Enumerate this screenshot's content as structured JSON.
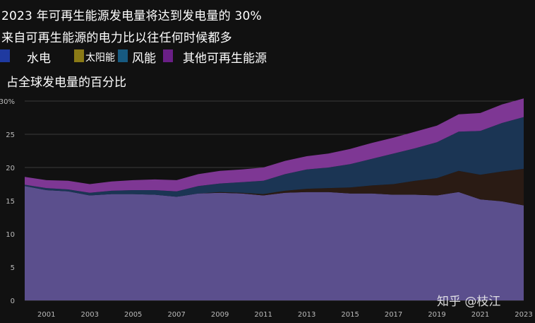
{
  "title_line1": "2023 年可再生能源发电量将达到发电量的 30%",
  "title_line2": "来自可再生能源的电力比以往任何时候都多",
  "subtitle": "占全球发电量的百分比",
  "watermark": "知乎 @枝江",
  "colors": {
    "hydro": "#5b4f8d",
    "solar": "#2a1b14",
    "wind": "#1b3554",
    "other": "#7e3794",
    "grid": "#3a3a3a",
    "background": "#111111"
  },
  "legend": [
    {
      "label": "水电",
      "swatch": "#1f3aa0"
    },
    {
      "label": "太阳能",
      "swatch": "#8a7a16"
    },
    {
      "label": "风能",
      "swatch": "#175a80"
    },
    {
      "label": "其他可再生能源",
      "swatch": "#6a1f86"
    }
  ],
  "chart_data": {
    "type": "area",
    "stacked": true,
    "x": [
      2000,
      2001,
      2002,
      2003,
      2004,
      2005,
      2006,
      2007,
      2008,
      2009,
      2010,
      2011,
      2012,
      2013,
      2014,
      2015,
      2016,
      2017,
      2018,
      2019,
      2020,
      2021,
      2022,
      2023
    ],
    "series": [
      {
        "name": "水电",
        "values": [
          17.2,
          16.6,
          16.4,
          15.8,
          16.0,
          16.0,
          15.9,
          15.6,
          16.1,
          16.2,
          16.1,
          15.8,
          16.2,
          16.3,
          16.3,
          16.1,
          16.1,
          15.9,
          15.9,
          15.8,
          16.3,
          15.2,
          14.9,
          14.3
        ]
      },
      {
        "name": "太阳能",
        "values": [
          0.0,
          0.0,
          0.0,
          0.0,
          0.0,
          0.0,
          0.0,
          0.0,
          0.0,
          0.1,
          0.1,
          0.2,
          0.3,
          0.5,
          0.6,
          0.9,
          1.2,
          1.6,
          2.1,
          2.6,
          3.2,
          3.7,
          4.5,
          5.5
        ]
      },
      {
        "name": "风能",
        "values": [
          0.2,
          0.3,
          0.3,
          0.4,
          0.5,
          0.6,
          0.7,
          0.8,
          1.1,
          1.3,
          1.6,
          2.0,
          2.5,
          2.9,
          3.1,
          3.5,
          4.0,
          4.6,
          4.9,
          5.4,
          5.9,
          6.6,
          7.3,
          7.8
        ]
      },
      {
        "name": "其他可再生能源",
        "values": [
          1.2,
          1.2,
          1.3,
          1.3,
          1.4,
          1.5,
          1.6,
          1.7,
          1.8,
          1.9,
          1.9,
          2.0,
          2.0,
          2.0,
          2.1,
          2.3,
          2.4,
          2.4,
          2.5,
          2.5,
          2.6,
          2.7,
          2.8,
          2.8
        ]
      }
    ],
    "ylim": [
      0,
      30
    ],
    "y_ticks": [
      "0",
      "5",
      "10",
      "15",
      "20",
      "25",
      "30%"
    ],
    "y_tick_values": [
      0,
      5,
      10,
      15,
      20,
      25,
      30
    ],
    "x_ticks": [
      "2001",
      "2003",
      "2005",
      "2007",
      "2009",
      "2011",
      "2013",
      "2015",
      "2017",
      "2019",
      "2021",
      "2023"
    ],
    "x_tick_values": [
      2001,
      2003,
      2005,
      2007,
      2009,
      2011,
      2013,
      2015,
      2017,
      2019,
      2021,
      2023
    ],
    "grid": true,
    "legend_position": "top-left"
  }
}
